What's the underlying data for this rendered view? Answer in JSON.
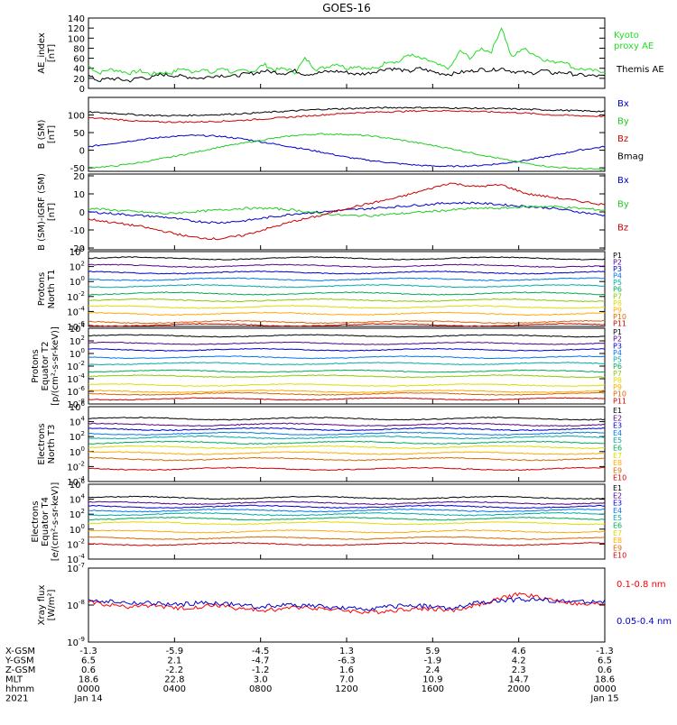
{
  "title": "GOES-16",
  "chart_data": [
    {
      "type": "line",
      "ylabel": [
        "AE_index",
        "[nT]"
      ],
      "ylim": [
        0,
        140
      ],
      "yticks": [
        0,
        20,
        40,
        60,
        80,
        100,
        120,
        140
      ],
      "series": [
        {
          "name": "Kyoto proxy AE",
          "color": "#22dd22",
          "legend_lines": [
            "Kyoto",
            "proxy AE"
          ],
          "values": [
            45,
            30,
            38,
            35,
            30,
            35,
            28,
            32,
            30,
            40,
            33,
            38,
            30,
            42,
            30,
            36,
            34,
            48,
            36,
            40,
            32,
            60,
            38,
            42,
            50,
            40,
            45,
            38,
            40,
            55,
            52,
            68,
            60,
            55,
            45,
            40,
            75,
            60,
            80,
            72,
            122,
            60,
            80,
            70,
            58,
            52,
            55,
            40,
            38,
            35,
            34
          ]
        },
        {
          "name": "Themis AE",
          "color": "#000000",
          "legend_lines": [
            "Themis AE"
          ],
          "values": [
            25,
            15,
            20,
            18,
            15,
            22,
            20,
            28,
            26,
            24,
            22,
            20,
            25,
            26,
            24,
            28,
            30,
            35,
            32,
            30,
            35,
            28,
            30,
            33,
            34,
            32,
            28,
            30,
            35,
            40,
            38,
            33,
            40,
            35,
            30,
            28,
            32,
            34,
            38,
            36,
            40,
            34,
            32,
            30,
            36,
            30,
            32,
            28,
            26,
            25,
            24
          ]
        }
      ]
    },
    {
      "type": "line",
      "ylabel": [
        "B (SM)",
        "[nT]"
      ],
      "ylim": [
        -60,
        150
      ],
      "yticks": [
        -50,
        0,
        50,
        100
      ],
      "series": [
        {
          "name": "Bx",
          "color": "#0000cc",
          "values": [
            10,
            20,
            30,
            38,
            42,
            40,
            32,
            20,
            8,
            -5,
            -20,
            -30,
            -38,
            -44,
            -46,
            -44,
            -38,
            -28,
            -15,
            0,
            10
          ]
        },
        {
          "name": "By",
          "color": "#22cc22",
          "values": [
            -50,
            -45,
            -35,
            -22,
            -8,
            8,
            20,
            32,
            42,
            46,
            45,
            40,
            30,
            18,
            5,
            -10,
            -25,
            -38,
            -48,
            -52,
            -55
          ]
        },
        {
          "name": "Bz",
          "color": "#cc0000",
          "values": [
            92,
            88,
            82,
            80,
            80,
            82,
            85,
            90,
            95,
            100,
            105,
            108,
            110,
            112,
            112,
            110,
            108,
            105,
            100,
            98,
            96
          ]
        },
        {
          "name": "Bmag",
          "color": "#000000",
          "values": [
            108,
            105,
            100,
            98,
            99,
            101,
            104,
            108,
            112,
            116,
            118,
            120,
            121,
            121,
            120,
            119,
            118,
            116,
            114,
            112,
            110
          ]
        }
      ]
    },
    {
      "type": "line",
      "ylabel": [
        "B (SM)-IGRF (SM)",
        "[nT]"
      ],
      "ylim": [
        -21,
        21
      ],
      "yticks": [
        -20,
        -10,
        0,
        10,
        20
      ],
      "series": [
        {
          "name": "Bx",
          "color": "#0000cc",
          "values": [
            0,
            -1,
            -2,
            -3,
            -5,
            -6,
            -5,
            -3,
            -1,
            0,
            1,
            2,
            3,
            4,
            5,
            5,
            4,
            3,
            2,
            0,
            -2
          ]
        },
        {
          "name": "By",
          "color": "#22cc22",
          "values": [
            2,
            1,
            0,
            -1,
            0,
            1,
            2,
            2,
            1,
            -1,
            -2,
            -2,
            -1,
            0,
            1,
            2,
            2,
            3,
            3,
            2,
            1
          ]
        },
        {
          "name": "Bz",
          "color": "#cc0000",
          "values": [
            -4,
            -6,
            -8,
            -11,
            -14,
            -15,
            -13,
            -9,
            -5,
            -2,
            2,
            5,
            8,
            12,
            16,
            14,
            15,
            10,
            8,
            6,
            4
          ]
        }
      ]
    },
    {
      "type": "line",
      "log": true,
      "ylabel": [
        "Protons",
        "North T1"
      ],
      "ylim_exp": [
        -6,
        4
      ],
      "yticks_exp": [
        -6,
        -4,
        -2,
        0,
        2,
        4
      ],
      "series": [
        {
          "name": "P1",
          "color": "#000000",
          "level": 3.1
        },
        {
          "name": "P2",
          "color": "#550088",
          "level": 2.1
        },
        {
          "name": "P3",
          "color": "#0000cc",
          "level": 1.2
        },
        {
          "name": "P4",
          "color": "#0077ee",
          "level": 0.3
        },
        {
          "name": "P5",
          "color": "#00aaaa",
          "level": -0.6
        },
        {
          "name": "P6",
          "color": "#00aa55",
          "level": -1.6
        },
        {
          "name": "P7",
          "color": "#88cc00",
          "level": -2.5
        },
        {
          "name": "P8",
          "color": "#dddd00",
          "level": -3.4
        },
        {
          "name": "P9",
          "color": "#ffaa00",
          "level": -4.3
        },
        {
          "name": "P10",
          "color": "#dd6600",
          "level": -5.4
        },
        {
          "name": "P11",
          "color": "#cc0000",
          "level": -5.8
        }
      ]
    },
    {
      "type": "line",
      "log": true,
      "ylabel": [
        "Protons",
        "Equator T2",
        "[p/(cm²-s-sr-keV)]"
      ],
      "ylim_exp": [
        -8,
        4
      ],
      "yticks_exp": [
        -8,
        -6,
        -4,
        -2,
        0,
        2,
        4
      ],
      "series": [
        {
          "name": "P1",
          "color": "#000000",
          "level": 2.8
        },
        {
          "name": "P2",
          "color": "#550088",
          "level": 1.6
        },
        {
          "name": "P3",
          "color": "#0000cc",
          "level": 0.6
        },
        {
          "name": "P4",
          "color": "#0077ee",
          "level": -0.6
        },
        {
          "name": "P5",
          "color": "#00aaaa",
          "level": -1.6
        },
        {
          "name": "P6",
          "color": "#00aa55",
          "level": -2.8
        },
        {
          "name": "P7",
          "color": "#88cc00",
          "level": -3.6
        },
        {
          "name": "P8",
          "color": "#dddd00",
          "level": -5.0
        },
        {
          "name": "P9",
          "color": "#ffaa00",
          "level": -6.0
        },
        {
          "name": "P10",
          "color": "#dd6600",
          "level": -6.4
        },
        {
          "name": "P11",
          "color": "#cc0000",
          "level": -7.2
        }
      ]
    },
    {
      "type": "line",
      "log": true,
      "ylabel": [
        "Electrons",
        "North T3"
      ],
      "ylim_exp": [
        -4,
        6
      ],
      "yticks_exp": [
        -4,
        -2,
        0,
        2,
        4,
        6
      ],
      "series": [
        {
          "name": "E1",
          "color": "#000000",
          "level": 4.4
        },
        {
          "name": "E2",
          "color": "#550088",
          "level": 3.6
        },
        {
          "name": "E3",
          "color": "#0000cc",
          "level": 3.0
        },
        {
          "name": "E4",
          "color": "#0077ee",
          "level": 2.4
        },
        {
          "name": "E5",
          "color": "#00aaaa",
          "level": 1.9
        },
        {
          "name": "E6",
          "color": "#00aa55",
          "level": 1.2
        },
        {
          "name": "E7",
          "color": "#dddd00",
          "level": 0.6
        },
        {
          "name": "E8",
          "color": "#ffaa00",
          "level": -0.2
        },
        {
          "name": "E9",
          "color": "#dd6600",
          "level": -1.0
        },
        {
          "name": "E10",
          "color": "#cc0000",
          "level": -2.3
        }
      ]
    },
    {
      "type": "line",
      "log": true,
      "ylabel": [
        "Electrons",
        "Equator T4",
        "[e/(cm²-s-sr-keV)]"
      ],
      "ylim_exp": [
        -4,
        6
      ],
      "yticks_exp": [
        -4,
        -2,
        0,
        2,
        4,
        6
      ],
      "series": [
        {
          "name": "E1",
          "color": "#000000",
          "level": 4.2
        },
        {
          "name": "E2",
          "color": "#550088",
          "level": 3.5
        },
        {
          "name": "E3",
          "color": "#0000cc",
          "level": 3.0
        },
        {
          "name": "E4",
          "color": "#0077ee",
          "level": 2.5
        },
        {
          "name": "E5",
          "color": "#00aaaa",
          "level": 2.0
        },
        {
          "name": "E6",
          "color": "#00aa55",
          "level": 1.4
        },
        {
          "name": "E7",
          "color": "#dddd00",
          "level": 0.8
        },
        {
          "name": "E8",
          "color": "#ffaa00",
          "level": -0.3
        },
        {
          "name": "E9",
          "color": "#dd6600",
          "level": -1.2
        },
        {
          "name": "E10",
          "color": "#cc0000",
          "level": -2.0
        }
      ]
    },
    {
      "type": "line",
      "log": true,
      "ylabel": [
        "Xray flux",
        "[W/m²]"
      ],
      "ylim_exp": [
        -9,
        -7
      ],
      "yticks_exp": [
        -9,
        -8,
        -7
      ],
      "series": [
        {
          "name": "0.1-0.8 nm",
          "color": "#ff0000",
          "values": [
            -7.9,
            -8.0,
            -8.05,
            -8.0,
            -8.1,
            -8.05,
            -8.0,
            -8.1,
            -8.15,
            -8.1,
            -8.05,
            -8.1,
            -8.15,
            -8.2,
            -8.15,
            -8.1,
            -8.1,
            -8.15,
            -8.0,
            -7.85,
            -7.7,
            -7.8,
            -7.9,
            -8.0,
            -7.95
          ]
        },
        {
          "name": "0.05-0.4 nm",
          "color": "#0000cc",
          "values": [
            -7.85,
            -7.9,
            -7.95,
            -7.95,
            -8.0,
            -7.95,
            -7.95,
            -8.0,
            -8.05,
            -8.0,
            -8.0,
            -8.05,
            -8.1,
            -8.1,
            -8.05,
            -8.0,
            -8.05,
            -8.1,
            -7.95,
            -7.9,
            -7.85,
            -7.85,
            -7.9,
            -7.9,
            -7.9
          ]
        }
      ]
    }
  ],
  "xaxis": {
    "row_labels": [
      "X-GSM",
      "Y-GSM",
      "Z-GSM",
      "MLT",
      "hhmm",
      "2021"
    ],
    "columns": [
      {
        "vals": [
          "-1.3",
          "6.5",
          "0.6",
          "18.6",
          "0000",
          "Jan 14"
        ]
      },
      {
        "vals": [
          "-5.9",
          "2.1",
          "-2.2",
          "22.8",
          "0400",
          ""
        ]
      },
      {
        "vals": [
          "-4.5",
          "-4.7",
          "-1.2",
          "3.0",
          "0800",
          ""
        ]
      },
      {
        "vals": [
          "1.3",
          "-6.3",
          "1.6",
          "7.0",
          "1200",
          ""
        ]
      },
      {
        "vals": [
          "5.9",
          "-1.9",
          "2.4",
          "10.9",
          "1600",
          ""
        ]
      },
      {
        "vals": [
          "4.6",
          "4.2",
          "2.3",
          "14.7",
          "2000",
          ""
        ]
      },
      {
        "vals": [
          "-1.3",
          "6.5",
          "0.6",
          "18.6",
          "0000",
          "Jan 15"
        ]
      }
    ]
  }
}
